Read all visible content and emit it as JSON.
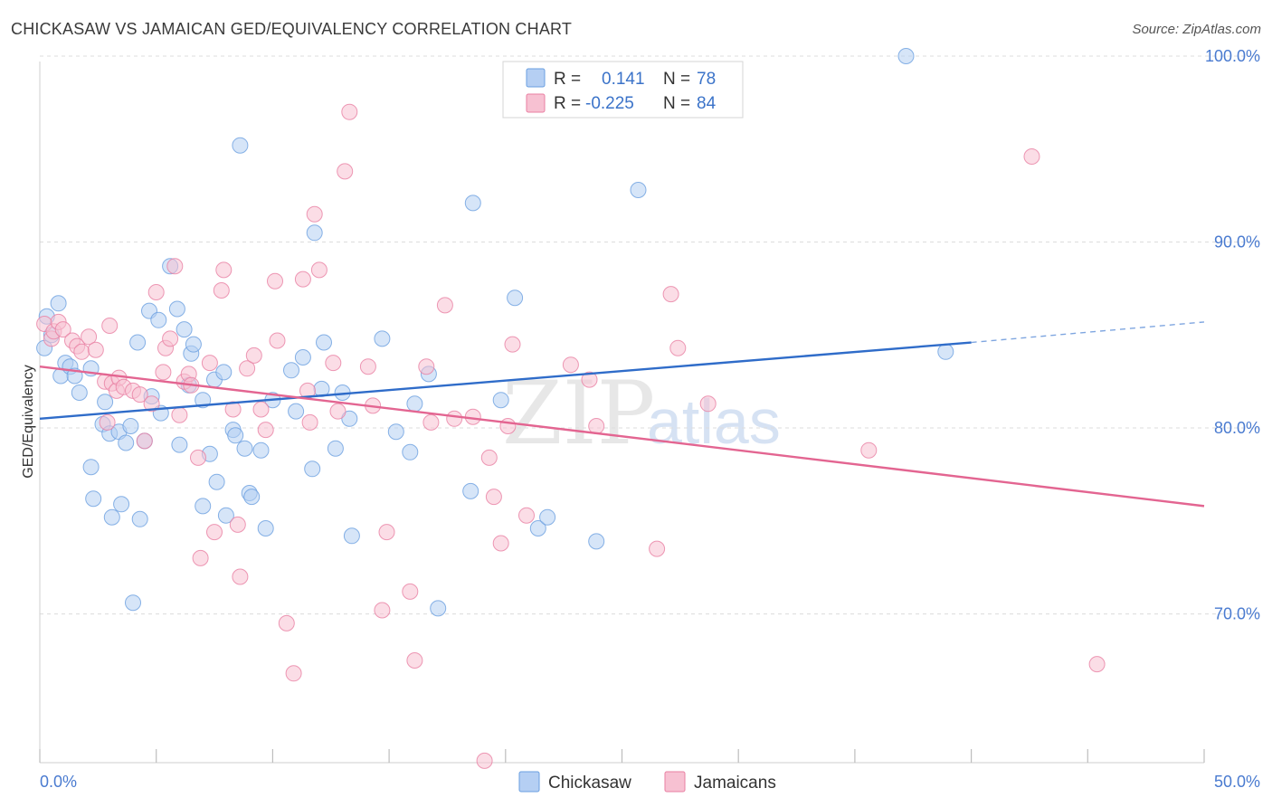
{
  "header": {
    "title": "CHICKASAW VS JAMAICAN GED/EQUIVALENCY CORRELATION CHART",
    "source": "Source: ZipAtlas.com"
  },
  "legend": {
    "rows": [
      {
        "r_label": "R =",
        "r_value": "0.141",
        "n_label": "N =",
        "n_value": "78",
        "color": "#a9c6f0"
      },
      {
        "r_label": "R =",
        "r_value": "-0.225",
        "n_label": "N =",
        "n_value": "84",
        "color": "#f5b8cb"
      }
    ]
  },
  "bottom_legend": [
    {
      "label": "Chickasaw",
      "color": "#a9c6f0"
    },
    {
      "label": "Jamaicans",
      "color": "#f5b8cb"
    }
  ],
  "watermark": {
    "zip": "ZIP",
    "atlas": "atlas"
  },
  "chart_data": {
    "type": "scatter",
    "title": "CHICKASAW VS JAMAICAN GED/EQUIVALENCY CORRELATION CHART",
    "xlabel": "",
    "ylabel": "GED/Equivalency",
    "xlim": [
      0,
      50
    ],
    "ylim": [
      62,
      100
    ],
    "x_tick_labels": [
      "0.0%",
      "50.0%"
    ],
    "y_ticks": [
      70,
      80,
      90,
      100
    ],
    "y_tick_labels": [
      "70.0%",
      "80.0%",
      "90.0%",
      "100.0%"
    ],
    "grid": true,
    "legend_position": "top-center",
    "series": [
      {
        "name": "Chickasaw",
        "color": "#6a9fe0",
        "fill": "#b5cff3",
        "trend": {
          "x0": 0,
          "y0": 80.5,
          "x1": 40,
          "y1": 84.6,
          "dash_to_x": 50,
          "dash_to_y": 85.7
        },
        "points": [
          [
            0.2,
            84.3
          ],
          [
            0.3,
            86.0
          ],
          [
            0.5,
            85.0
          ],
          [
            0.8,
            86.7
          ],
          [
            0.9,
            82.8
          ],
          [
            1.1,
            83.5
          ],
          [
            1.3,
            83.3
          ],
          [
            1.5,
            82.8
          ],
          [
            1.7,
            81.9
          ],
          [
            2.2,
            83.2
          ],
          [
            2.2,
            77.9
          ],
          [
            2.3,
            76.2
          ],
          [
            2.7,
            80.2
          ],
          [
            2.8,
            81.4
          ],
          [
            3.0,
            79.7
          ],
          [
            3.1,
            75.2
          ],
          [
            3.4,
            79.8
          ],
          [
            3.5,
            75.9
          ],
          [
            3.7,
            79.2
          ],
          [
            3.9,
            80.1
          ],
          [
            4.0,
            70.6
          ],
          [
            4.2,
            84.6
          ],
          [
            4.3,
            75.1
          ],
          [
            4.5,
            79.3
          ],
          [
            4.7,
            86.3
          ],
          [
            4.8,
            81.7
          ],
          [
            5.1,
            85.8
          ],
          [
            5.2,
            80.8
          ],
          [
            5.6,
            88.7
          ],
          [
            5.9,
            86.4
          ],
          [
            6.0,
            79.1
          ],
          [
            6.2,
            85.3
          ],
          [
            6.4,
            82.3
          ],
          [
            6.5,
            84.0
          ],
          [
            6.6,
            84.5
          ],
          [
            7.0,
            81.5
          ],
          [
            7.0,
            75.8
          ],
          [
            7.3,
            78.6
          ],
          [
            7.5,
            82.6
          ],
          [
            7.6,
            77.1
          ],
          [
            7.9,
            83.0
          ],
          [
            8.0,
            75.3
          ],
          [
            8.3,
            79.9
          ],
          [
            8.4,
            79.6
          ],
          [
            8.6,
            95.2
          ],
          [
            8.8,
            78.9
          ],
          [
            9.0,
            76.5
          ],
          [
            9.1,
            76.3
          ],
          [
            9.5,
            78.8
          ],
          [
            9.7,
            74.6
          ],
          [
            10.0,
            81.5
          ],
          [
            10.8,
            83.1
          ],
          [
            11.0,
            80.9
          ],
          [
            11.3,
            83.8
          ],
          [
            11.7,
            77.8
          ],
          [
            11.8,
            90.5
          ],
          [
            12.1,
            82.1
          ],
          [
            12.2,
            84.6
          ],
          [
            12.7,
            78.9
          ],
          [
            13.0,
            81.9
          ],
          [
            13.3,
            80.5
          ],
          [
            13.4,
            74.2
          ],
          [
            14.7,
            84.8
          ],
          [
            15.3,
            79.8
          ],
          [
            15.9,
            78.7
          ],
          [
            16.1,
            81.3
          ],
          [
            16.7,
            82.9
          ],
          [
            17.1,
            70.3
          ],
          [
            18.5,
            76.6
          ],
          [
            18.6,
            92.1
          ],
          [
            19.8,
            81.5
          ],
          [
            20.4,
            87.0
          ],
          [
            21.4,
            74.6
          ],
          [
            21.8,
            75.2
          ],
          [
            23.9,
            73.9
          ],
          [
            25.7,
            92.8
          ],
          [
            37.2,
            100.0
          ],
          [
            38.9,
            84.1
          ]
        ]
      },
      {
        "name": "Jamaicans",
        "color": "#e97fa2",
        "fill": "#f7c1d2",
        "trend": {
          "x0": 0,
          "y0": 83.3,
          "x1": 50,
          "y1": 75.8
        },
        "points": [
          [
            0.2,
            85.6
          ],
          [
            0.5,
            84.8
          ],
          [
            0.6,
            85.2
          ],
          [
            0.8,
            85.7
          ],
          [
            1.0,
            85.3
          ],
          [
            1.4,
            84.7
          ],
          [
            1.6,
            84.4
          ],
          [
            1.8,
            84.1
          ],
          [
            2.1,
            84.9
          ],
          [
            2.4,
            84.2
          ],
          [
            2.8,
            82.5
          ],
          [
            2.9,
            80.3
          ],
          [
            3.0,
            85.5
          ],
          [
            3.1,
            82.4
          ],
          [
            3.3,
            82.0
          ],
          [
            3.4,
            82.7
          ],
          [
            3.6,
            82.2
          ],
          [
            4.0,
            82.0
          ],
          [
            4.3,
            81.8
          ],
          [
            4.5,
            79.3
          ],
          [
            4.8,
            81.3
          ],
          [
            5.0,
            87.3
          ],
          [
            5.3,
            83.0
          ],
          [
            5.4,
            84.3
          ],
          [
            5.6,
            84.8
          ],
          [
            5.8,
            88.7
          ],
          [
            6.0,
            80.7
          ],
          [
            6.2,
            82.5
          ],
          [
            6.4,
            82.9
          ],
          [
            6.5,
            82.3
          ],
          [
            6.8,
            78.4
          ],
          [
            6.9,
            73.0
          ],
          [
            7.3,
            83.5
          ],
          [
            7.5,
            74.4
          ],
          [
            7.8,
            87.4
          ],
          [
            7.9,
            88.5
          ],
          [
            8.3,
            81.0
          ],
          [
            8.5,
            74.8
          ],
          [
            8.6,
            72.0
          ],
          [
            8.9,
            83.2
          ],
          [
            9.2,
            83.9
          ],
          [
            9.5,
            81.0
          ],
          [
            9.7,
            79.9
          ],
          [
            10.1,
            87.9
          ],
          [
            10.2,
            84.7
          ],
          [
            10.6,
            69.5
          ],
          [
            10.9,
            66.8
          ],
          [
            11.3,
            88.0
          ],
          [
            11.5,
            82.0
          ],
          [
            11.6,
            80.3
          ],
          [
            11.8,
            91.5
          ],
          [
            12.0,
            88.5
          ],
          [
            12.6,
            83.5
          ],
          [
            12.8,
            80.9
          ],
          [
            13.1,
            93.8
          ],
          [
            13.3,
            97.0
          ],
          [
            14.1,
            83.3
          ],
          [
            14.3,
            81.2
          ],
          [
            14.7,
            70.2
          ],
          [
            14.9,
            74.4
          ],
          [
            15.9,
            71.2
          ],
          [
            16.1,
            67.5
          ],
          [
            16.6,
            83.3
          ],
          [
            16.8,
            80.3
          ],
          [
            17.4,
            86.6
          ],
          [
            17.8,
            80.5
          ],
          [
            18.6,
            80.6
          ],
          [
            19.1,
            62.1
          ],
          [
            19.3,
            78.4
          ],
          [
            19.5,
            76.3
          ],
          [
            19.8,
            73.8
          ],
          [
            20.1,
            80.1
          ],
          [
            20.3,
            84.5
          ],
          [
            20.9,
            75.3
          ],
          [
            22.8,
            83.4
          ],
          [
            23.6,
            82.6
          ],
          [
            23.9,
            80.1
          ],
          [
            26.5,
            73.5
          ],
          [
            27.1,
            87.2
          ],
          [
            27.4,
            84.3
          ],
          [
            28.7,
            81.3
          ],
          [
            35.6,
            78.8
          ],
          [
            42.6,
            94.6
          ],
          [
            45.4,
            67.3
          ]
        ]
      }
    ]
  }
}
